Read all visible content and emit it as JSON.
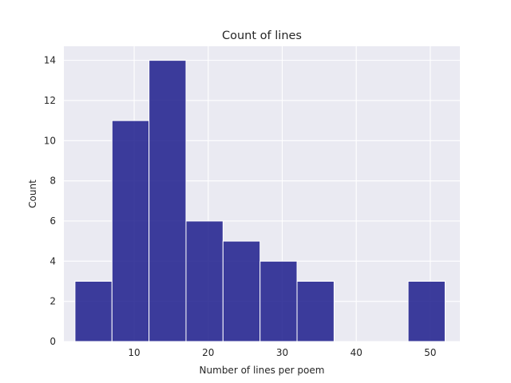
{
  "chart_data": {
    "type": "bar",
    "subtype": "histogram",
    "title": "Count of lines",
    "xlabel": "Number of lines per poem",
    "ylabel": "Count",
    "bins": [
      {
        "start": 2,
        "end": 7,
        "count": 3
      },
      {
        "start": 7,
        "end": 12,
        "count": 11
      },
      {
        "start": 12,
        "end": 17,
        "count": 14
      },
      {
        "start": 17,
        "end": 22,
        "count": 6
      },
      {
        "start": 22,
        "end": 27,
        "count": 5
      },
      {
        "start": 27,
        "end": 32,
        "count": 4
      },
      {
        "start": 32,
        "end": 37,
        "count": 3
      },
      {
        "start": 37,
        "end": 42,
        "count": 0
      },
      {
        "start": 42,
        "end": 47,
        "count": 0
      },
      {
        "start": 47,
        "end": 52,
        "count": 3
      }
    ],
    "xlim": [
      0.5,
      54
    ],
    "ylim": [
      0,
      14.7
    ],
    "xticks": [
      10,
      20,
      30,
      40,
      50
    ],
    "yticks": [
      0,
      2,
      4,
      6,
      8,
      10,
      12,
      14
    ],
    "grid": true,
    "legend": "none",
    "colors": {
      "bar": "#1c1c8c",
      "background": "#eaeaf2",
      "grid": "#ffffff"
    }
  }
}
